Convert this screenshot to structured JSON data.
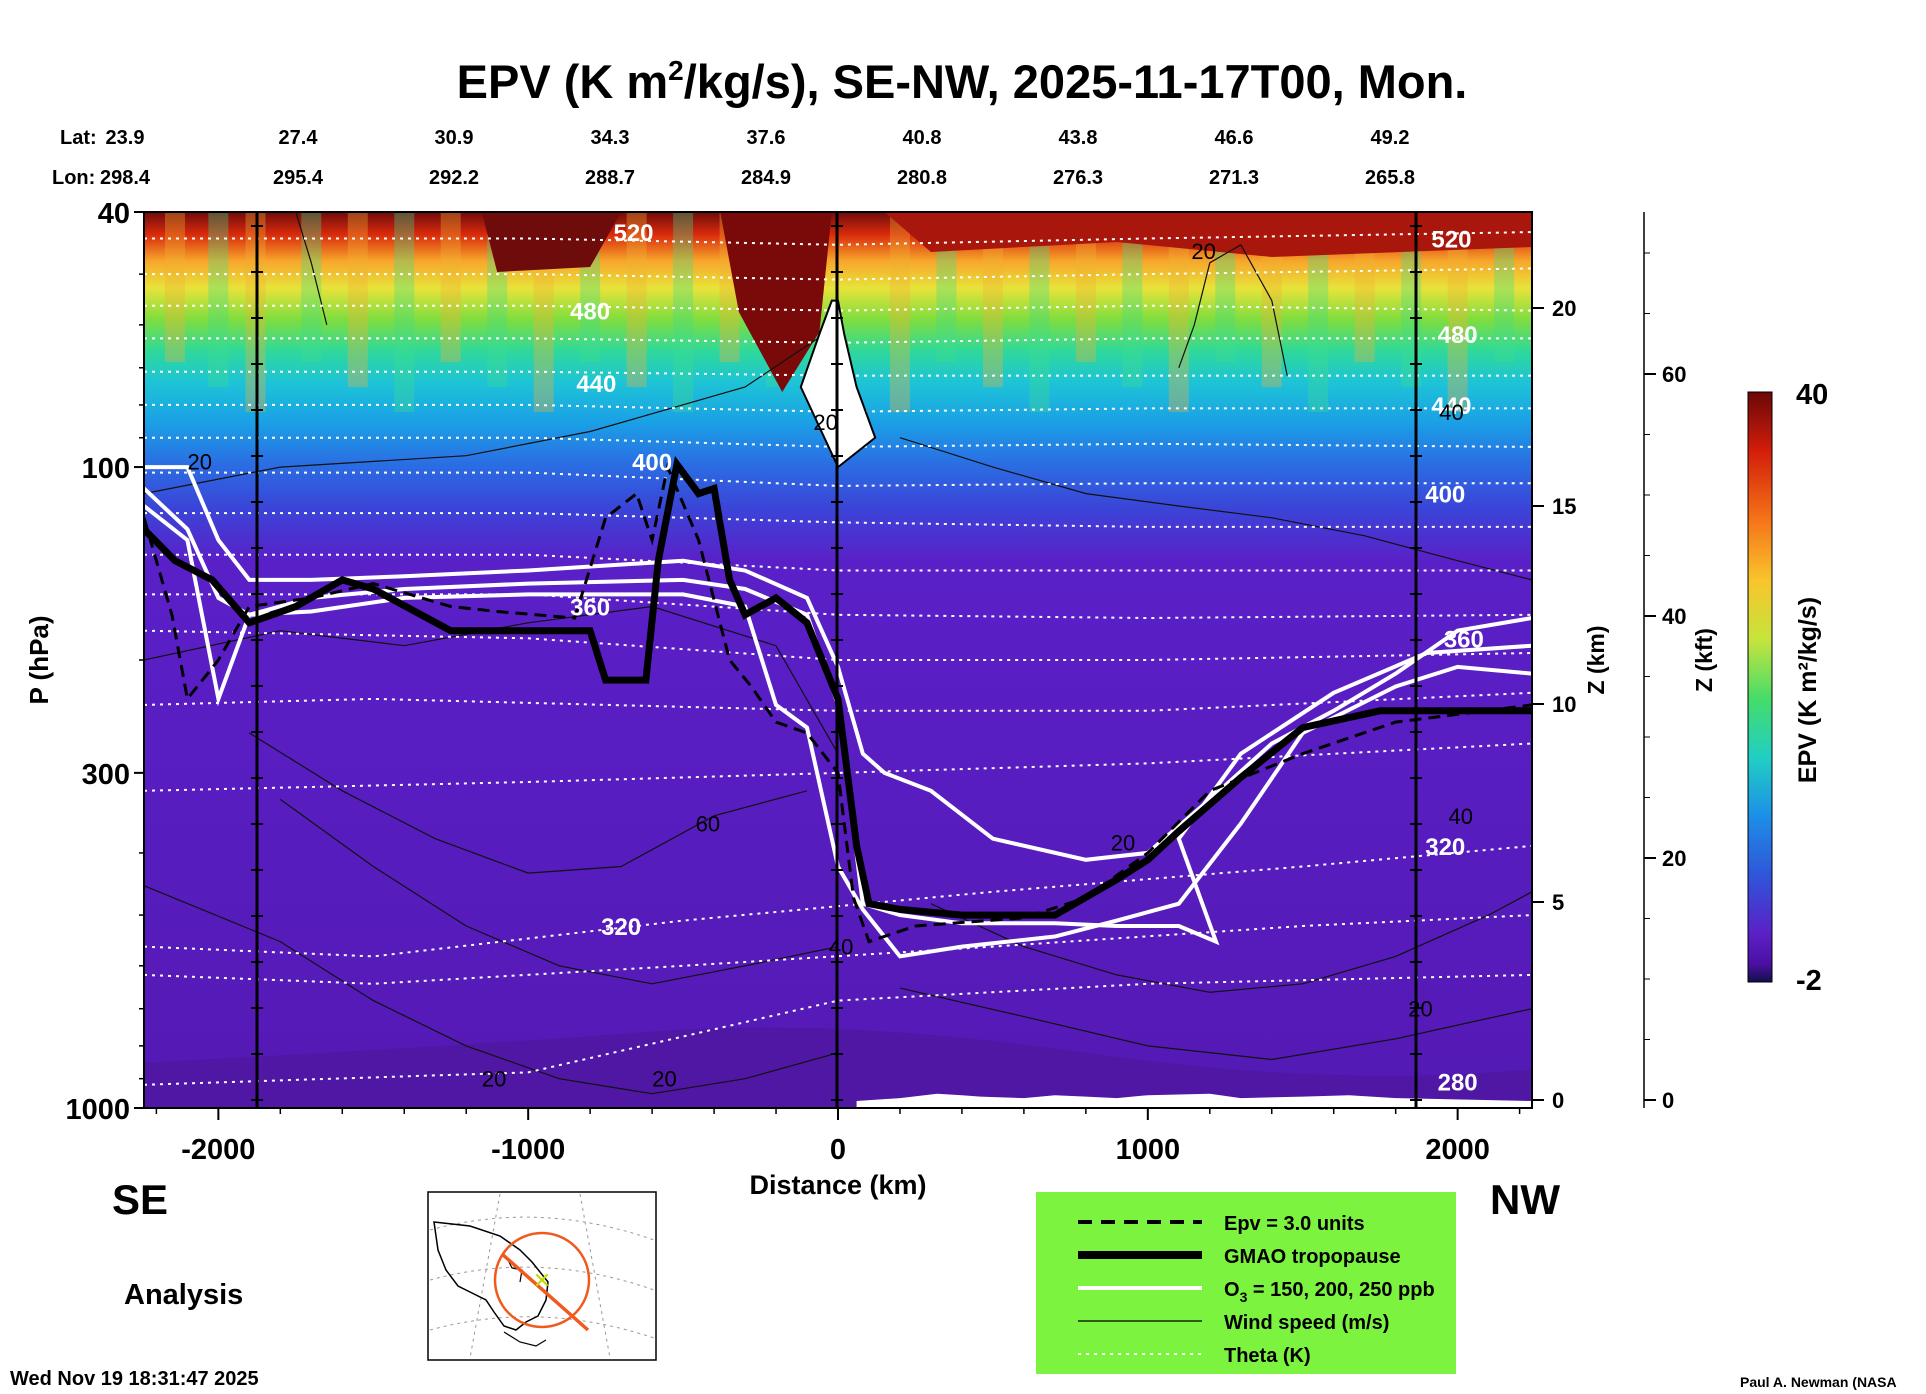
{
  "chart_data": {
    "type": "heatmap",
    "title_parts": {
      "pre": "EPV (K m",
      "sup": "2",
      "post": "/kg/s), SE-NW, 2025-11-17T00, Mon."
    },
    "xlabel": "Distance (km)",
    "ylabel": "P (hPa)",
    "z_km_label": "Z (km)",
    "z_kft_label": "Z (kft)",
    "colorbar_label": "EPV (K m²/kg/s)",
    "colorbar_ticks": [
      "40",
      "-2"
    ],
    "colorbar_range": [
      -2,
      40
    ],
    "x_ticks": [
      -2000,
      -1000,
      0,
      1000,
      2000
    ],
    "x_tick_labels": [
      "-2000",
      "-1000",
      "0",
      "1000",
      "2000"
    ],
    "xlim": [
      -2240,
      2240
    ],
    "y_ticks": [
      40,
      100,
      300,
      1000
    ],
    "y_tick_labels": [
      "40",
      "100",
      "300",
      "1000"
    ],
    "ylim": [
      1000,
      40
    ],
    "y_scale": "log",
    "z_km_ticks": [
      0,
      5,
      10,
      15,
      20
    ],
    "z_km_labels": [
      "0",
      "5",
      "10",
      "15",
      "20"
    ],
    "z_kft_ticks": [
      0,
      20,
      40,
      60
    ],
    "z_kft_labels": [
      "0",
      "20",
      "40",
      "60"
    ],
    "lat_label": "Lat:",
    "lon_label": "Lon:",
    "lat_values": [
      "23.9",
      "27.4",
      "30.9",
      "34.3",
      "37.6",
      "40.8",
      "43.8",
      "46.6",
      "49.2"
    ],
    "lon_values": [
      "298.4",
      "295.4",
      "292.2",
      "288.7",
      "284.9",
      "280.8",
      "276.3",
      "271.3",
      "265.8"
    ],
    "theta_labels": [
      {
        "text": "520",
        "x": -660,
        "p": 43
      },
      {
        "text": "480",
        "x": -800,
        "p": 57
      },
      {
        "text": "440",
        "x": -780,
        "p": 74
      },
      {
        "text": "400",
        "x": -600,
        "p": 98
      },
      {
        "text": "360",
        "x": -800,
        "p": 165
      },
      {
        "text": "320",
        "x": -700,
        "p": 520
      },
      {
        "text": "520",
        "x": 1980,
        "p": 44
      },
      {
        "text": "480",
        "x": 2000,
        "p": 62
      },
      {
        "text": "440",
        "x": 1980,
        "p": 80
      },
      {
        "text": "400",
        "x": 1960,
        "p": 110
      },
      {
        "text": "360",
        "x": 2020,
        "p": 185
      },
      {
        "text": "320",
        "x": 1960,
        "p": 390
      },
      {
        "text": "280",
        "x": 2000,
        "p": 910
      }
    ],
    "wind_labels": [
      {
        "text": "20",
        "x": -2060,
        "p": 98
      },
      {
        "text": "20",
        "x": 1180,
        "p": 46
      },
      {
        "text": "20",
        "x": -40,
        "p": 85
      },
      {
        "text": "60",
        "x": -420,
        "p": 360
      },
      {
        "text": "40",
        "x": 10,
        "p": 560
      },
      {
        "text": "20",
        "x": -1110,
        "p": 900
      },
      {
        "text": "20",
        "x": -560,
        "p": 900
      },
      {
        "text": "20",
        "x": 1880,
        "p": 700
      },
      {
        "text": "40",
        "x": 1980,
        "p": 82
      },
      {
        "text": "40",
        "x": 2010,
        "p": 350
      },
      {
        "text": "20",
        "x": 920,
        "p": 385
      }
    ],
    "theta_lines": [
      {
        "x": [
          -2240,
          -1000,
          0,
          1000,
          2240
        ],
        "p": [
          44,
          44,
          45,
          44,
          43
        ]
      },
      {
        "x": [
          -2240,
          -1000,
          0,
          1000,
          2240
        ],
        "p": [
          50,
          50,
          51,
          50,
          49
        ]
      },
      {
        "x": [
          -2240,
          -1000,
          0,
          1000,
          2240
        ],
        "p": [
          56,
          56,
          57,
          56,
          57
        ]
      },
      {
        "x": [
          -2240,
          -1000,
          0,
          1000,
          2240
        ],
        "p": [
          63,
          63,
          64,
          63,
          63
        ]
      },
      {
        "x": [
          -2240,
          -1000,
          0,
          1000,
          2240
        ],
        "p": [
          71,
          71,
          72,
          72,
          72
        ]
      },
      {
        "x": [
          -2240,
          -1000,
          0,
          1000,
          2240
        ],
        "p": [
          80,
          80,
          82,
          81,
          81
        ]
      },
      {
        "x": [
          -2240,
          -1000,
          0,
          1000,
          2240
        ],
        "p": [
          90,
          90,
          93,
          92,
          93
        ]
      },
      {
        "x": [
          -2240,
          -1000,
          0,
          1000,
          2240
        ],
        "p": [
          102,
          102,
          107,
          106,
          106
        ]
      },
      {
        "x": [
          -2240,
          -1000,
          0,
          1000,
          2240
        ],
        "p": [
          118,
          118,
          122,
          124,
          124
        ]
      },
      {
        "x": [
          -2240,
          -1000,
          0,
          1000,
          2240
        ],
        "p": [
          137,
          137,
          145,
          145,
          145
        ]
      },
      {
        "x": [
          -2240,
          -1000,
          0,
          1000,
          2240
        ],
        "p": [
          158,
          158,
          170,
          172,
          170
        ]
      },
      {
        "x": [
          -2240,
          -1000,
          0,
          1000,
          2240
        ],
        "p": [
          180,
          185,
          200,
          200,
          195
        ]
      },
      {
        "x": [
          -2240,
          -1500,
          0,
          1000,
          2240
        ],
        "p": [
          235,
          230,
          240,
          240,
          225
        ]
      },
      {
        "x": [
          -2240,
          -1000,
          0,
          1000,
          2240
        ],
        "p": [
          320,
          310,
          300,
          290,
          270
        ]
      },
      {
        "x": [
          -2240,
          -1500,
          -500,
          500,
          1500,
          2240
        ],
        "p": [
          560,
          580,
          510,
          460,
          420,
          390
        ]
      },
      {
        "x": [
          -2240,
          -1500,
          -500,
          500,
          1500,
          2240
        ],
        "p": [
          620,
          640,
          600,
          560,
          520,
          500
        ]
      },
      {
        "x": [
          -2240,
          -1000,
          0,
          1000,
          2240
        ],
        "p": [
          920,
          880,
          680,
          640,
          620
        ]
      }
    ],
    "wind_lines": [
      {
        "x": [
          -2240,
          -1800,
          -1200,
          -800,
          -300,
          0
        ],
        "p": [
          110,
          100,
          96,
          88,
          75,
          60
        ]
      },
      {
        "x": [
          -2240,
          -1800,
          -1400,
          -1000,
          -600,
          -200,
          0
        ],
        "p": [
          200,
          180,
          190,
          175,
          165,
          190,
          280
        ]
      },
      {
        "x": [
          -1900,
          -1600,
          -1300,
          -1000,
          -700,
          -400,
          -100
        ],
        "p": [
          260,
          320,
          380,
          430,
          420,
          350,
          320
        ]
      },
      {
        "x": [
          -1800,
          -1500,
          -1200,
          -900,
          -600,
          -300,
          0
        ],
        "p": [
          330,
          420,
          520,
          600,
          640,
          600,
          560
        ]
      },
      {
        "x": [
          -2240,
          -1800,
          -1500,
          -1200,
          -900,
          -600,
          -300,
          0
        ],
        "p": [
          450,
          550,
          680,
          800,
          900,
          950,
          900,
          820
        ]
      },
      {
        "x": [
          200,
          500,
          800,
          1100,
          1400,
          1700,
          2000,
          2240
        ],
        "p": [
          90,
          100,
          110,
          115,
          120,
          128,
          140,
          150
        ]
      },
      {
        "x": [
          300,
          600,
          900,
          1200,
          1500,
          1800,
          2100,
          2240
        ],
        "p": [
          480,
          560,
          620,
          660,
          640,
          580,
          500,
          460
        ]
      },
      {
        "x": [
          200,
          600,
          1000,
          1400,
          1800,
          2240
        ],
        "p": [
          650,
          720,
          800,
          840,
          780,
          700
        ]
      },
      {
        "x": [
          1100,
          1150,
          1200,
          1300,
          1400,
          1450
        ],
        "p": [
          70,
          60,
          48,
          45,
          55,
          72
        ]
      },
      {
        "x": [
          -1750,
          -1700,
          -1650
        ],
        "p": [
          40,
          48,
          60
        ]
      }
    ],
    "tropopause": {
      "x": [
        -2240,
        -2140,
        -2020,
        -1900,
        -1750,
        -1600,
        -1500,
        -1250,
        -1100,
        -800,
        -750,
        -620,
        -580,
        -520,
        -450,
        -400,
        -350,
        -300,
        -200,
        -100,
        0,
        60,
        100,
        200,
        400,
        700,
        900,
        1000,
        1100,
        1300,
        1500,
        1750,
        2240
      ],
      "p": [
        125,
        140,
        150,
        175,
        165,
        150,
        155,
        180,
        180,
        180,
        215,
        215,
        140,
        99,
        110,
        108,
        150,
        170,
        160,
        175,
        230,
        390,
        480,
        490,
        500,
        500,
        440,
        410,
        370,
        305,
        255,
        240,
        240
      ]
    },
    "epv_dashed": {
      "x": [
        -2240,
        -2150,
        -2100,
        -2000,
        -1900,
        -1700,
        -1500,
        -1250,
        -1100,
        -850,
        -750,
        -650,
        -600,
        -550,
        -450,
        -350,
        -280,
        -200,
        -100,
        0,
        50,
        100,
        250,
        600,
        800,
        1000,
        1200,
        1500,
        1800,
        2240
      ],
      "p": [
        120,
        170,
        230,
        200,
        165,
        160,
        152,
        165,
        168,
        172,
        120,
        110,
        130,
        100,
        130,
        200,
        220,
        250,
        260,
        300,
        470,
        550,
        520,
        505,
        470,
        400,
        320,
        280,
        250,
        235
      ]
    },
    "ozone_lines": [
      {
        "x": [
          -2240,
          -2100,
          -2000,
          -1900,
          -1700,
          -1400,
          -1000,
          -500,
          -300,
          -100,
          0,
          80,
          150,
          300,
          500,
          800,
          1000,
          1200,
          1400,
          1600,
          1800,
          2000,
          2240
        ],
        "p": [
          100,
          100,
          130,
          150,
          150,
          148,
          145,
          140,
          145,
          160,
          205,
          280,
          300,
          320,
          380,
          410,
          400,
          330,
          270,
          240,
          210,
          180,
          172
        ]
      },
      {
        "x": [
          -2240,
          -2100,
          -2000,
          -1900,
          -1700,
          -1400,
          -1000,
          -500,
          -300,
          -100,
          0,
          80,
          200,
          400,
          700,
          900,
          1100,
          1220,
          1100,
          1300,
          1600,
          1900,
          2240
        ],
        "p": [
          108,
          125,
          160,
          170,
          160,
          155,
          152,
          150,
          155,
          170,
          235,
          480,
          500,
          515,
          515,
          520,
          520,
          550,
          380,
          280,
          225,
          195,
          190
        ]
      },
      {
        "x": [
          -2240,
          -2100,
          -2000,
          -1900,
          -1700,
          -1400,
          -1000,
          -500,
          -300,
          -200,
          -100,
          0,
          80,
          200,
          400,
          700,
          900,
          1100,
          1300,
          1500,
          1800,
          2000,
          2240
        ],
        "p": [
          115,
          130,
          230,
          170,
          168,
          160,
          158,
          158,
          165,
          235,
          255,
          420,
          490,
          580,
          560,
          540,
          510,
          480,
          360,
          260,
          220,
          205,
          210
        ]
      }
    ],
    "white_patch": {
      "x": [
        -120,
        -60,
        -20,
        0,
        20,
        60,
        120,
        0
      ],
      "p": [
        75,
        62,
        55,
        55,
        62,
        75,
        90,
        100
      ]
    },
    "terrain": {
      "x": [
        60,
        200,
        320,
        400,
        460,
        600,
        700,
        800,
        900,
        1000,
        1200,
        1300,
        1500,
        1650,
        1800,
        2240
      ],
      "p": [
        975,
        965,
        950,
        955,
        960,
        965,
        955,
        960,
        965,
        955,
        950,
        965,
        960,
        955,
        965,
        975
      ]
    }
  },
  "directions": {
    "left": "SE",
    "right": "NW"
  },
  "analysis_label": "Analysis",
  "legend": {
    "items": [
      {
        "label": "Epv = 3.0 units",
        "style": "dashed"
      },
      {
        "label": "GMAO tropopause",
        "style": "thick"
      },
      {
        "label_pre": "O",
        "label_sub": "3",
        "label_post": " = 150, 200, 250 ppb",
        "style": "white"
      },
      {
        "label": "Wind speed (m/s)",
        "style": "thin"
      },
      {
        "label": "Theta (K)",
        "style": "dotted"
      }
    ],
    "bg_color": "#7cf33f"
  },
  "timestamp": "Wed Nov 19 18:31:47 2025",
  "credit": "Paul A. Newman (NASA"
}
